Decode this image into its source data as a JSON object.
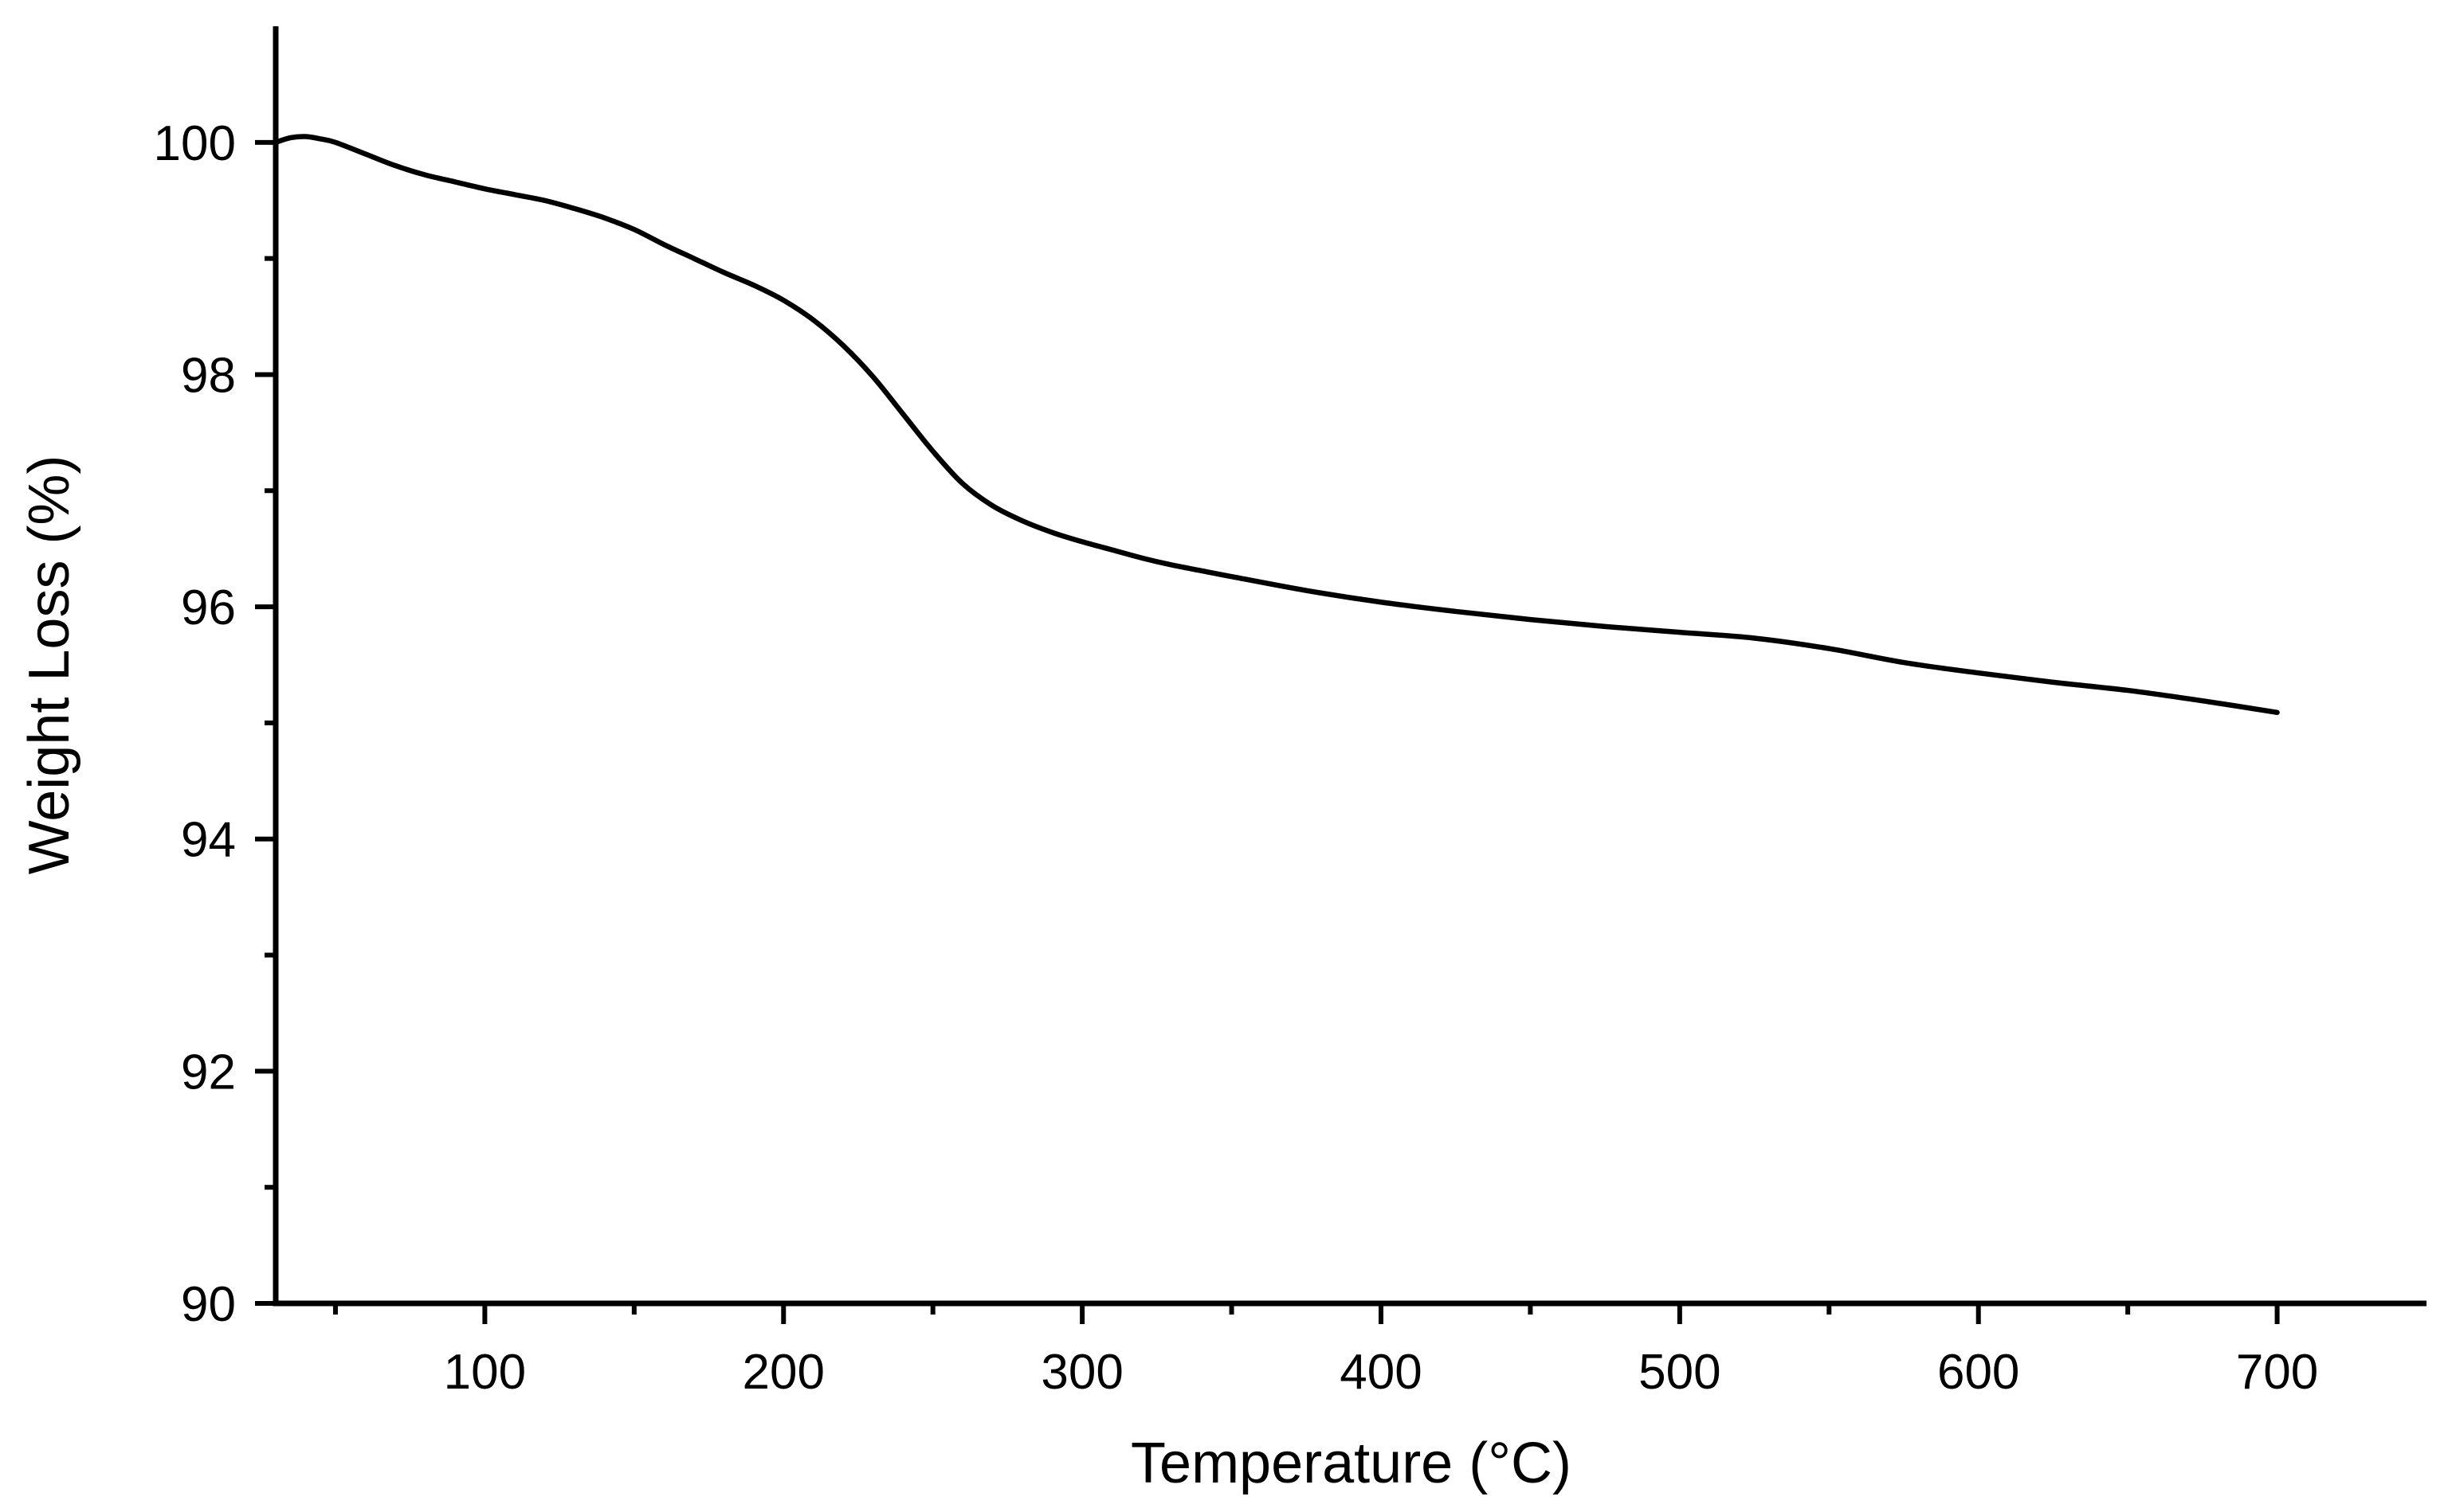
{
  "chart_data": {
    "type": "line",
    "title": "",
    "xlabel": "Temperature (°C)",
    "ylabel": "Weight Loss (%)",
    "xlim": [
      30,
      750
    ],
    "ylim": [
      90,
      101
    ],
    "x_ticks": [
      100,
      200,
      300,
      400,
      500,
      600,
      700
    ],
    "x_tick_labels": [
      "100",
      "200",
      "300",
      "400",
      "500",
      "600",
      "700"
    ],
    "x_minor_ticks": [
      50,
      150,
      250,
      350,
      450,
      550,
      650
    ],
    "y_ticks": [
      90,
      92,
      94,
      96,
      98,
      100
    ],
    "y_tick_labels": [
      "90",
      "92",
      "94",
      "96",
      "98",
      "100"
    ],
    "y_minor_ticks": [
      91,
      93,
      95,
      97,
      99
    ],
    "grid": false,
    "legend": "none",
    "line_color": "#000000",
    "series": [
      {
        "x": [
          30,
          35,
          40,
          45,
          50,
          60,
          70,
          80,
          90,
          100,
          110,
          120,
          130,
          140,
          150,
          160,
          170,
          180,
          190,
          200,
          210,
          220,
          230,
          240,
          250,
          260,
          270,
          280,
          290,
          300,
          310,
          320,
          330,
          340,
          350,
          375,
          400,
          425,
          450,
          475,
          500,
          525,
          550,
          575,
          600,
          625,
          650,
          675,
          700
        ],
        "y": [
          100.0,
          100.04,
          100.05,
          100.03,
          100.0,
          99.9,
          99.8,
          99.72,
          99.66,
          99.6,
          99.55,
          99.5,
          99.43,
          99.35,
          99.25,
          99.12,
          99.0,
          98.88,
          98.77,
          98.64,
          98.47,
          98.25,
          97.98,
          97.66,
          97.34,
          97.06,
          96.87,
          96.74,
          96.64,
          96.56,
          96.49,
          96.42,
          96.36,
          96.31,
          96.26,
          96.14,
          96.04,
          95.96,
          95.89,
          95.83,
          95.78,
          95.73,
          95.64,
          95.52,
          95.43,
          95.35,
          95.28,
          95.19,
          95.09
        ]
      }
    ]
  }
}
